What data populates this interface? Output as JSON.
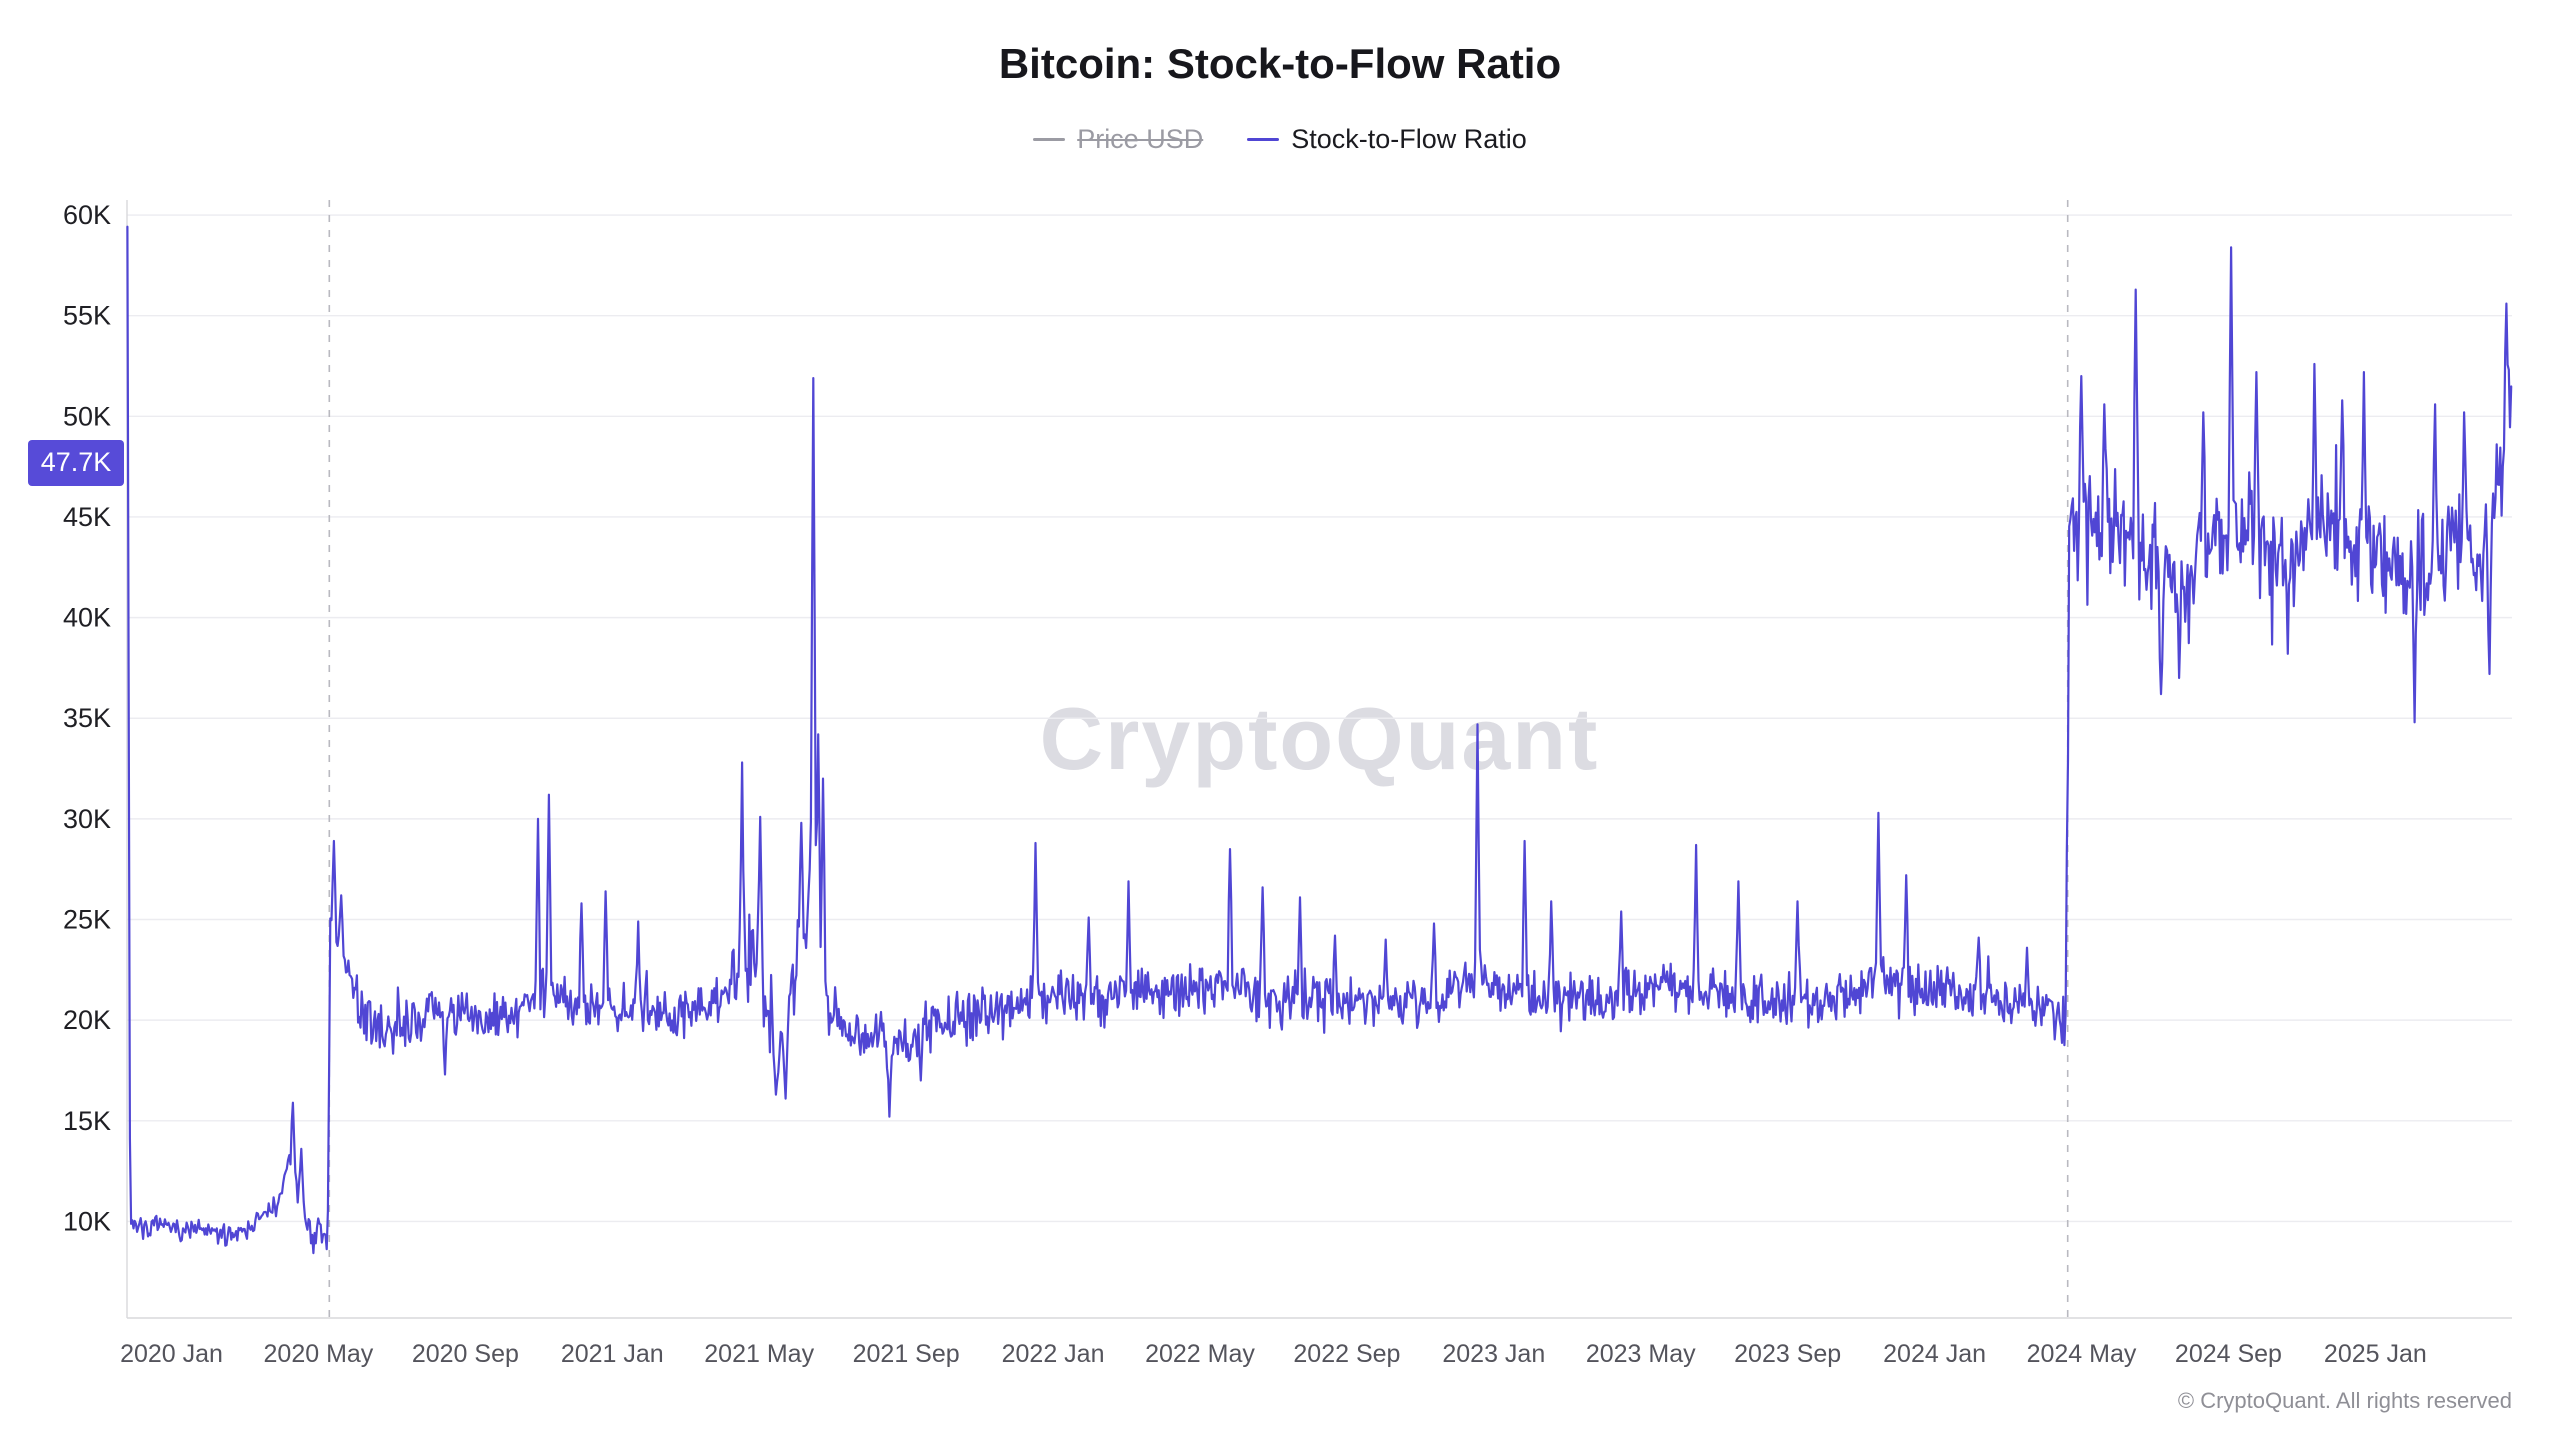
{
  "page": {
    "title": "Bitcoin: Stock-to-Flow Ratio",
    "watermark": "CryptoQuant",
    "footer": "© CryptoQuant. All rights reserved"
  },
  "legend": {
    "items": [
      {
        "label": "Price USD",
        "enabled": false,
        "color": "#9b9ba3"
      },
      {
        "label": "Stock-to-Flow Ratio",
        "enabled": true,
        "color": "#5046d4"
      }
    ]
  },
  "chart_data": {
    "type": "line",
    "title": "Bitcoin: Stock-to-Flow Ratio",
    "series_name": "Stock-to-Flow Ratio",
    "line_color": "#5046d4",
    "grid": "horizontal",
    "legend_position": "top",
    "x_ticks": [
      {
        "label": "2020 Jan",
        "t": 2020.0
      },
      {
        "label": "2020 May",
        "t": 2020.3333
      },
      {
        "label": "2020 Sep",
        "t": 2020.6667
      },
      {
        "label": "2021 Jan",
        "t": 2021.0
      },
      {
        "label": "2021 May",
        "t": 2021.3333
      },
      {
        "label": "2021 Sep",
        "t": 2021.6667
      },
      {
        "label": "2022 Jan",
        "t": 2022.0
      },
      {
        "label": "2022 May",
        "t": 2022.3333
      },
      {
        "label": "2022 Sep",
        "t": 2022.6667
      },
      {
        "label": "2023 Jan",
        "t": 2023.0
      },
      {
        "label": "2023 May",
        "t": 2023.3333
      },
      {
        "label": "2023 Sep",
        "t": 2023.6667
      },
      {
        "label": "2024 Jan",
        "t": 2024.0
      },
      {
        "label": "2024 May",
        "t": 2024.3333
      },
      {
        "label": "2024 Sep",
        "t": 2024.6667
      },
      {
        "label": "2025 Jan",
        "t": 2025.0
      }
    ],
    "y_ticks": [
      {
        "label": "10K",
        "value": 10
      },
      {
        "label": "15K",
        "value": 15
      },
      {
        "label": "20K",
        "value": 20
      },
      {
        "label": "25K",
        "value": 25
      },
      {
        "label": "30K",
        "value": 30
      },
      {
        "label": "35K",
        "value": 35
      },
      {
        "label": "40K",
        "value": 40
      },
      {
        "label": "45K",
        "value": 45
      },
      {
        "label": "50K",
        "value": 50
      },
      {
        "label": "55K",
        "value": 55
      },
      {
        "label": "60K",
        "value": 60
      }
    ],
    "xlim": [
      2019.899,
      2025.31
    ],
    "ylim_k": [
      5.2,
      60.75
    ],
    "current_value": {
      "label": "47.7K",
      "value_k": 47.7
    },
    "halving_lines_t": [
      2020.358,
      2024.302
    ],
    "points_per_year": 365,
    "seed": 7,
    "baseline_anchors_k": [
      [
        2019.9,
        60.7
      ],
      [
        2019.906,
        9.9
      ],
      [
        2019.95,
        9.7
      ],
      [
        2020.05,
        9.6
      ],
      [
        2020.12,
        9.3
      ],
      [
        2020.18,
        9.8
      ],
      [
        2020.24,
        10.8
      ],
      [
        2020.272,
        13.2
      ],
      [
        2020.29,
        11.0
      ],
      [
        2020.32,
        9.4
      ],
      [
        2020.354,
        9.2
      ],
      [
        2020.36,
        24.3
      ],
      [
        2020.39,
        23.0
      ],
      [
        2020.44,
        20.0
      ],
      [
        2020.5,
        19.3
      ],
      [
        2020.56,
        20.2
      ],
      [
        2020.63,
        20.6
      ],
      [
        2020.7,
        19.8
      ],
      [
        2020.78,
        20.3
      ],
      [
        2020.84,
        21.5
      ],
      [
        2020.9,
        21.0
      ],
      [
        2020.97,
        20.8
      ],
      [
        2021.05,
        20.6
      ],
      [
        2021.13,
        20.4
      ],
      [
        2021.21,
        20.4
      ],
      [
        2021.28,
        22.0
      ],
      [
        2021.325,
        23.5
      ],
      [
        2021.36,
        20.0
      ],
      [
        2021.385,
        18.5
      ],
      [
        2021.42,
        23.0
      ],
      [
        2021.445,
        25.5
      ],
      [
        2021.452,
        29.0
      ],
      [
        2021.465,
        25.0
      ],
      [
        2021.49,
        21.0
      ],
      [
        2021.54,
        19.6
      ],
      [
        2021.6,
        19.2
      ],
      [
        2021.66,
        18.8
      ],
      [
        2021.72,
        19.8
      ],
      [
        2021.8,
        20.2
      ],
      [
        2021.88,
        20.4
      ],
      [
        2021.96,
        21.2
      ],
      [
        2022.02,
        21.4
      ],
      [
        2022.1,
        20.9
      ],
      [
        2022.18,
        21.4
      ],
      [
        2022.26,
        21.2
      ],
      [
        2022.34,
        21.6
      ],
      [
        2022.42,
        21.8
      ],
      [
        2022.5,
        21.0
      ],
      [
        2022.58,
        20.9
      ],
      [
        2022.66,
        21.0
      ],
      [
        2022.74,
        20.8
      ],
      [
        2022.82,
        20.9
      ],
      [
        2022.9,
        21.1
      ],
      [
        2022.96,
        22.3
      ],
      [
        2023.02,
        21.4
      ],
      [
        2023.1,
        21.2
      ],
      [
        2023.2,
        21.0
      ],
      [
        2023.3,
        21.3
      ],
      [
        2023.42,
        21.8
      ],
      [
        2023.52,
        21.2
      ],
      [
        2023.62,
        21.0
      ],
      [
        2023.72,
        20.9
      ],
      [
        2023.82,
        21.2
      ],
      [
        2023.87,
        22.4
      ],
      [
        2023.94,
        21.6
      ],
      [
        2024.02,
        21.4
      ],
      [
        2024.12,
        21.1
      ],
      [
        2024.2,
        20.8
      ],
      [
        2024.29,
        20.2
      ],
      [
        2024.298,
        19.8
      ],
      [
        2024.306,
        45.0
      ],
      [
        2024.34,
        44.5
      ],
      [
        2024.4,
        44.8
      ],
      [
        2024.46,
        44.0
      ],
      [
        2024.52,
        42.0
      ],
      [
        2024.58,
        41.5
      ],
      [
        2024.64,
        44.0
      ],
      [
        2024.7,
        44.5
      ],
      [
        2024.76,
        43.0
      ],
      [
        2024.82,
        43.5
      ],
      [
        2024.88,
        44.5
      ],
      [
        2024.94,
        44.0
      ],
      [
        2025.0,
        43.5
      ],
      [
        2025.06,
        42.5
      ],
      [
        2025.12,
        43.0
      ],
      [
        2025.18,
        43.8
      ],
      [
        2025.24,
        43.5
      ],
      [
        2025.285,
        46.0
      ],
      [
        2025.305,
        52.0
      ]
    ],
    "noise_segments": [
      [
        2019.9,
        2020.25,
        0.55
      ],
      [
        2020.25,
        2020.354,
        0.75
      ],
      [
        2020.354,
        2021.27,
        1.25
      ],
      [
        2021.27,
        2021.5,
        2.0
      ],
      [
        2021.5,
        2024.298,
        1.3
      ],
      [
        2024.298,
        2025.31,
        2.9
      ]
    ],
    "spikes_k": [
      [
        2020.276,
        15.9
      ],
      [
        2020.295,
        13.6
      ],
      [
        2020.368,
        28.9
      ],
      [
        2020.385,
        26.2
      ],
      [
        2020.62,
        17.3
      ],
      [
        2020.832,
        30.0
      ],
      [
        2020.856,
        31.2
      ],
      [
        2020.93,
        25.8
      ],
      [
        2020.985,
        26.4
      ],
      [
        2021.06,
        24.9
      ],
      [
        2021.295,
        32.8
      ],
      [
        2021.335,
        30.1
      ],
      [
        2021.372,
        16.3
      ],
      [
        2021.392,
        16.1
      ],
      [
        2021.428,
        29.8
      ],
      [
        2021.447,
        27.5
      ],
      [
        2021.4555,
        51.9
      ],
      [
        2021.468,
        34.2
      ],
      [
        2021.478,
        32.0
      ],
      [
        2021.63,
        15.2
      ],
      [
        2021.7,
        17.0
      ],
      [
        2021.96,
        28.8
      ],
      [
        2022.08,
        25.1
      ],
      [
        2022.17,
        26.9
      ],
      [
        2022.4,
        28.5
      ],
      [
        2022.475,
        26.6
      ],
      [
        2022.56,
        26.1
      ],
      [
        2022.64,
        24.2
      ],
      [
        2022.755,
        24.0
      ],
      [
        2022.865,
        24.8
      ],
      [
        2022.962,
        34.7
      ],
      [
        2023.07,
        28.9
      ],
      [
        2023.13,
        25.9
      ],
      [
        2023.29,
        25.4
      ],
      [
        2023.46,
        28.7
      ],
      [
        2023.555,
        26.9
      ],
      [
        2023.69,
        25.9
      ],
      [
        2023.872,
        30.3
      ],
      [
        2023.935,
        27.2
      ],
      [
        2024.1,
        24.1
      ],
      [
        2024.21,
        23.6
      ],
      [
        2024.332,
        52.0
      ],
      [
        2024.385,
        50.6
      ],
      [
        2024.455,
        56.3
      ],
      [
        2024.515,
        36.2
      ],
      [
        2024.555,
        37.0
      ],
      [
        2024.61,
        50.2
      ],
      [
        2024.672,
        58.4
      ],
      [
        2024.73,
        52.2
      ],
      [
        2024.8,
        38.2
      ],
      [
        2024.862,
        52.6
      ],
      [
        2024.925,
        50.8
      ],
      [
        2024.975,
        52.2
      ],
      [
        2025.09,
        34.8
      ],
      [
        2025.135,
        50.6
      ],
      [
        2025.2,
        50.2
      ],
      [
        2025.258,
        37.2
      ],
      [
        2025.298,
        55.6
      ]
    ]
  }
}
